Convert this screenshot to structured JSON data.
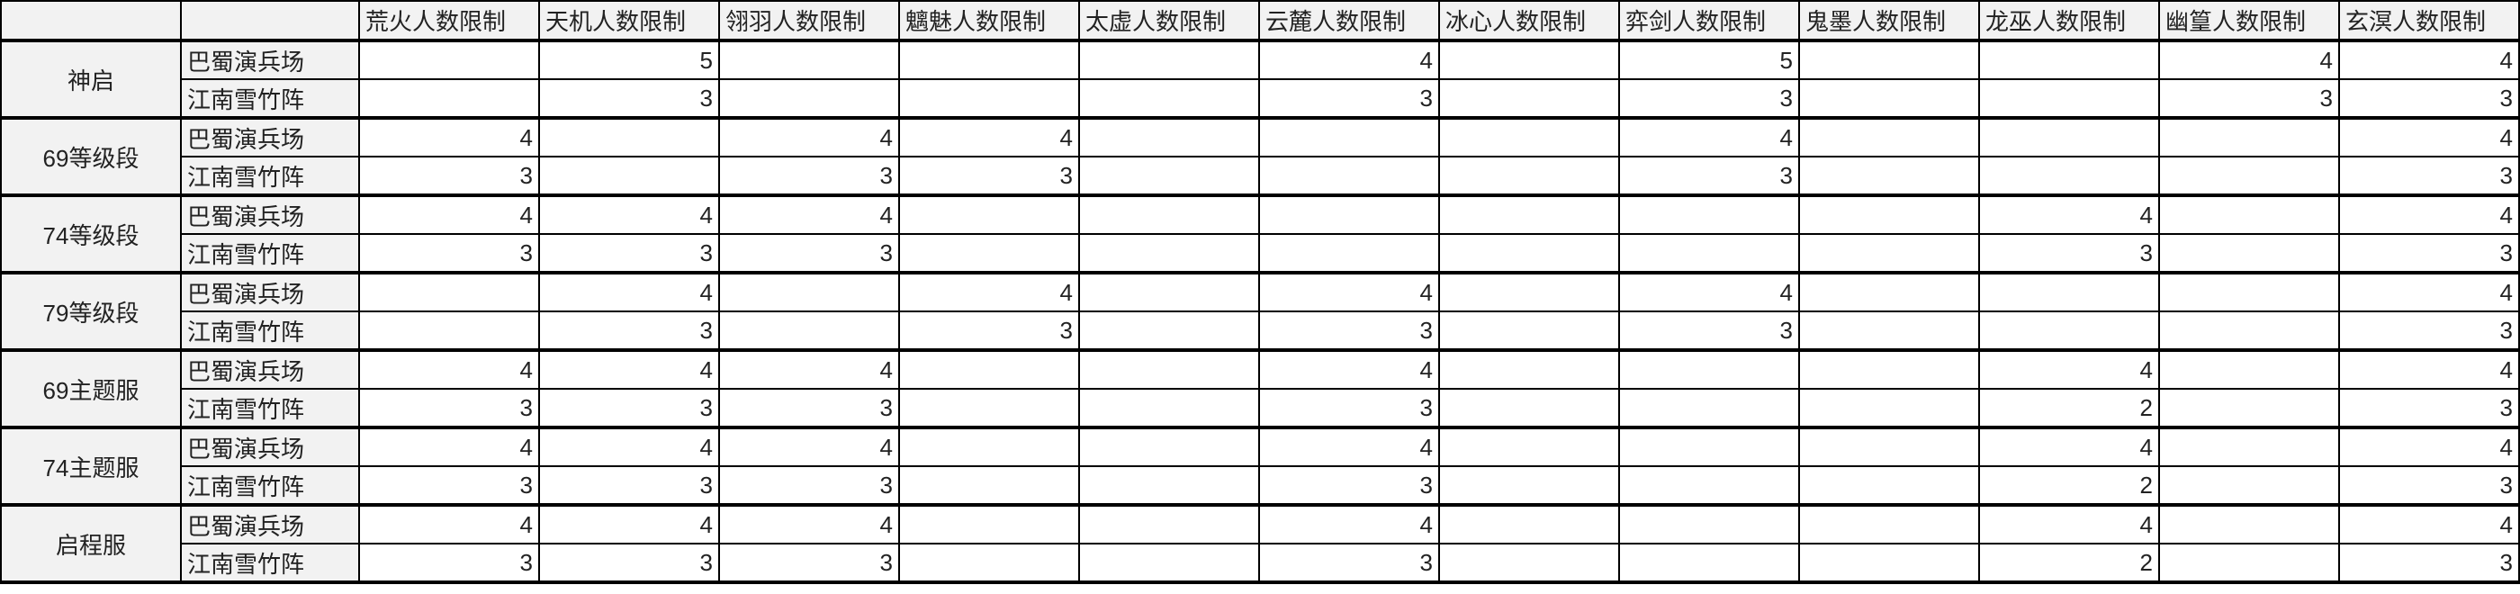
{
  "table": {
    "corner_labels": [
      "",
      ""
    ],
    "columns": [
      "荒火人数限制",
      "天机人数限制",
      "翎羽人数限制",
      "魑魅人数限制",
      "太虚人数限制",
      "云麓人数限制",
      "冰心人数限制",
      "弈剑人数限制",
      "鬼墨人数限制",
      "龙巫人数限制",
      "幽篁人数限制",
      "玄溟人数限制"
    ],
    "groups": [
      {
        "name": "神启",
        "rows": [
          {
            "label": "巴蜀演兵场",
            "values": [
              "",
              "5",
              "",
              "",
              "",
              "4",
              "",
              "5",
              "",
              "",
              "4",
              "4"
            ]
          },
          {
            "label": "江南雪竹阵",
            "values": [
              "",
              "3",
              "",
              "",
              "",
              "3",
              "",
              "3",
              "",
              "",
              "3",
              "3"
            ]
          }
        ]
      },
      {
        "name": "69等级段",
        "rows": [
          {
            "label": "巴蜀演兵场",
            "values": [
              "4",
              "",
              "4",
              "4",
              "",
              "",
              "",
              "4",
              "",
              "",
              "",
              "4"
            ]
          },
          {
            "label": "江南雪竹阵",
            "values": [
              "3",
              "",
              "3",
              "3",
              "",
              "",
              "",
              "3",
              "",
              "",
              "",
              "3"
            ]
          }
        ]
      },
      {
        "name": "74等级段",
        "rows": [
          {
            "label": "巴蜀演兵场",
            "values": [
              "4",
              "4",
              "4",
              "",
              "",
              "",
              "",
              "",
              "",
              "4",
              "",
              "4"
            ]
          },
          {
            "label": "江南雪竹阵",
            "values": [
              "3",
              "3",
              "3",
              "",
              "",
              "",
              "",
              "",
              "",
              "3",
              "",
              "3"
            ]
          }
        ]
      },
      {
        "name": "79等级段",
        "rows": [
          {
            "label": "巴蜀演兵场",
            "values": [
              "",
              "4",
              "",
              "4",
              "",
              "4",
              "",
              "4",
              "",
              "",
              "",
              "4"
            ]
          },
          {
            "label": "江南雪竹阵",
            "values": [
              "",
              "3",
              "",
              "3",
              "",
              "3",
              "",
              "3",
              "",
              "",
              "",
              "3"
            ]
          }
        ]
      },
      {
        "name": "69主题服",
        "rows": [
          {
            "label": "巴蜀演兵场",
            "values": [
              "4",
              "4",
              "4",
              "",
              "",
              "4",
              "",
              "",
              "",
              "4",
              "",
              "4"
            ]
          },
          {
            "label": "江南雪竹阵",
            "values": [
              "3",
              "3",
              "3",
              "",
              "",
              "3",
              "",
              "",
              "",
              "2",
              "",
              "3"
            ]
          }
        ]
      },
      {
        "name": "74主题服",
        "rows": [
          {
            "label": "巴蜀演兵场",
            "values": [
              "4",
              "4",
              "4",
              "",
              "",
              "4",
              "",
              "",
              "",
              "4",
              "",
              "4"
            ]
          },
          {
            "label": "江南雪竹阵",
            "values": [
              "3",
              "3",
              "3",
              "",
              "",
              "3",
              "",
              "",
              "",
              "2",
              "",
              "3"
            ]
          }
        ]
      },
      {
        "name": "启程服",
        "rows": [
          {
            "label": "巴蜀演兵场",
            "values": [
              "4",
              "4",
              "4",
              "",
              "",
              "4",
              "",
              "",
              "",
              "4",
              "",
              "4"
            ]
          },
          {
            "label": "江南雪竹阵",
            "values": [
              "3",
              "3",
              "3",
              "",
              "",
              "3",
              "",
              "",
              "",
              "2",
              "",
              "3"
            ]
          }
        ]
      }
    ]
  }
}
